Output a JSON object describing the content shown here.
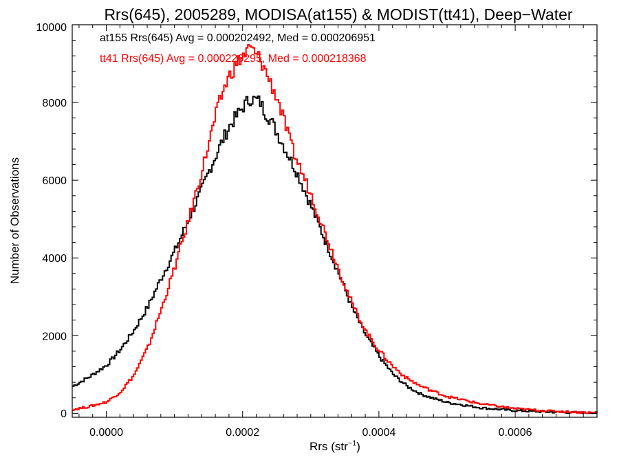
{
  "chart_data": {
    "type": "histogram",
    "title": "Rrs(645), 2005289, MODISA(at155) & MODIST(tt41), Deep−Water",
    "xlabel": "Rrs (str",
    "xlabel_sup": "−1",
    "xlabel_close": ")",
    "ylabel": "Number of Observations",
    "xlim": [
      -5e-05,
      0.00072
    ],
    "ylim": [
      -100,
      10000
    ],
    "xticks": [
      0.0,
      0.0002,
      0.0004,
      0.0006
    ],
    "xtick_labels": [
      "0.0000",
      "0.0002",
      "0.0004",
      "0.0006"
    ],
    "yticks": [
      0,
      2000,
      4000,
      6000,
      8000,
      10000
    ],
    "ytick_labels": [
      "0",
      "2000",
      "4000",
      "6000",
      "8000",
      "10000"
    ],
    "annotations": [
      {
        "text": "at155 Rrs(645) Avg = 0.000202492, Med = 0.000206951",
        "color": "#000000"
      },
      {
        "text": "tt41 Rrs(645) Avg = 0.000226295, Med = 0.000218368",
        "color": "#ff0000"
      }
    ],
    "series": [
      {
        "color": "#000000",
        "x": [
          -5e-05,
          -2.5e-05,
          0.0,
          2e-05,
          4e-05,
          6e-05,
          8e-05,
          0.0001,
          0.00012,
          0.00014,
          0.00015,
          0.00016,
          0.00017,
          0.00018,
          0.00019,
          0.0002,
          0.00021,
          0.00022,
          0.000225,
          0.00023,
          0.00024,
          0.00025,
          0.00026,
          0.00027,
          0.00028,
          0.0003,
          0.00032,
          0.00034,
          0.00036,
          0.00038,
          0.0004,
          0.00042,
          0.00044,
          0.00046,
          0.00048,
          0.0005,
          0.00055,
          0.0006,
          0.00065,
          0.0007,
          0.00072
        ],
        "y": [
          700,
          950,
          1250,
          1650,
          2150,
          2750,
          3500,
          4200,
          5000,
          5800,
          6250,
          6650,
          7050,
          7400,
          7650,
          7900,
          8100,
          8050,
          8000,
          7800,
          7550,
          7200,
          6850,
          6500,
          6150,
          5300,
          4450,
          3600,
          2700,
          2000,
          1450,
          1000,
          700,
          500,
          380,
          280,
          140,
          70,
          35,
          15,
          10
        ]
      },
      {
        "color": "#ff0000",
        "x": [
          -5e-05,
          -2.5e-05,
          0.0,
          2e-05,
          4e-05,
          6e-05,
          8e-05,
          0.0001,
          0.00012,
          0.00014,
          0.00015,
          0.00016,
          0.00017,
          0.00018,
          0.00019,
          0.0002,
          0.00021,
          0.00022,
          0.000225,
          0.00023,
          0.00024,
          0.00025,
          0.00026,
          0.00027,
          0.00028,
          0.0003,
          0.00032,
          0.00034,
          0.00036,
          0.00038,
          0.0004,
          0.00042,
          0.00044,
          0.00046,
          0.00048,
          0.0005,
          0.00055,
          0.0006,
          0.00065,
          0.0007,
          0.00072
        ],
        "y": [
          100,
          180,
          300,
          560,
          1000,
          1700,
          2700,
          3800,
          5000,
          6300,
          7000,
          7700,
          8300,
          8700,
          9000,
          9200,
          9400,
          9200,
          9100,
          8900,
          8500,
          8100,
          7500,
          6900,
          6450,
          5600,
          4650,
          3700,
          2800,
          2100,
          1600,
          1200,
          900,
          700,
          560,
          430,
          240,
          120,
          60,
          25,
          15
        ]
      }
    ]
  }
}
